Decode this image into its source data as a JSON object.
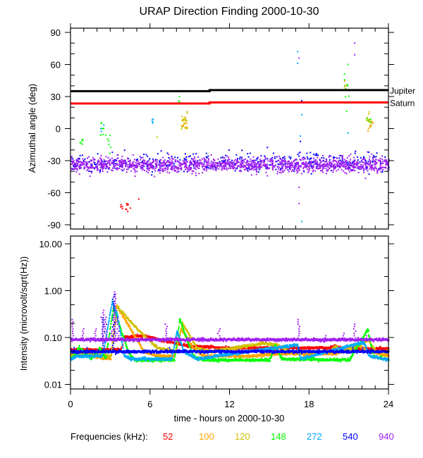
{
  "chart_data": [
    {
      "type": "scatter",
      "title": "URAP Direction Finding  2000-10-30",
      "ylabel": "Azimuthal angle (deg)",
      "xlim": [
        0,
        24
      ],
      "ylim": [
        -90,
        90
      ],
      "yticks": [
        "90",
        "60",
        "30",
        "0",
        "-30",
        "-60",
        "-90"
      ],
      "ytick_values": [
        90,
        60,
        30,
        0,
        -30,
        -60,
        -90
      ],
      "reference_lines": [
        {
          "name": "Jupiter",
          "color": "#000000",
          "points": [
            [
              0,
              35
            ],
            [
              10.5,
              35
            ],
            [
              10.5,
              36
            ],
            [
              24,
              36
            ]
          ]
        },
        {
          "name": "Saturn",
          "color": "#ff0000",
          "points": [
            [
              0,
              23.5
            ],
            [
              10.5,
              23.5
            ],
            [
              10.5,
              24.5
            ],
            [
              24,
              24.5
            ]
          ]
        }
      ],
      "clusters": [
        {
          "freq": "940",
          "t": [
            0,
            24
          ],
          "angle": -34,
          "sd": 3.5,
          "n": 1500
        },
        {
          "freq": "540",
          "t": [
            0,
            24
          ],
          "angle": -32,
          "sd": 4.5,
          "n": 450
        },
        {
          "freq": "148",
          "t": [
            0.6,
            0.9
          ],
          "angle": -12,
          "sd": 2,
          "n": 6
        },
        {
          "freq": "148",
          "t": [
            2.2,
            2.6
          ],
          "angle": 1,
          "sd": 4,
          "n": 8
        },
        {
          "freq": "148",
          "t": [
            2.7,
            3.1
          ],
          "angle": -14,
          "sd": 6,
          "n": 6
        },
        {
          "freq": "148",
          "t": [
            8.1,
            8.2
          ],
          "angle": 27,
          "sd": 3,
          "n": 3
        },
        {
          "freq": "148",
          "t": [
            20.6,
            21.0
          ],
          "angle": 40,
          "sd": 12,
          "n": 10
        },
        {
          "freq": "148",
          "t": [
            22.2,
            22.7
          ],
          "angle": 6,
          "sd": 5,
          "n": 8
        },
        {
          "freq": "52",
          "t": [
            3.6,
            4.5
          ],
          "angle": -73,
          "sd": 3,
          "n": 12
        },
        {
          "freq": "120",
          "t": [
            8.3,
            8.8
          ],
          "angle": 6,
          "sd": 4,
          "n": 25
        },
        {
          "freq": "120",
          "t": [
            22.3,
            22.7
          ],
          "angle": 8,
          "sd": 4,
          "n": 10
        },
        {
          "freq": "100",
          "t": [
            8.4,
            8.8
          ],
          "angle": 4,
          "sd": 3,
          "n": 6
        },
        {
          "freq": "100",
          "t": [
            22.4,
            22.8
          ],
          "angle": 3,
          "sd": 3,
          "n": 8
        },
        {
          "freq": "100",
          "t": [
            20.6,
            20.9
          ],
          "angle": 42,
          "sd": 4,
          "n": 4
        },
        {
          "freq": "272",
          "t": [
            6.1,
            6.3
          ],
          "angle": 6,
          "sd": 2,
          "n": 4
        },
        {
          "freq": "272",
          "t": [
            2.2,
            2.5
          ],
          "angle": 1,
          "sd": 2,
          "n": 3
        }
      ],
      "points": [
        {
          "freq": "272",
          "t": 17.1,
          "angle": 61
        },
        {
          "freq": "272",
          "t": 17.1,
          "angle": 72
        },
        {
          "freq": "272",
          "t": 17.4,
          "angle": -87
        },
        {
          "freq": "272",
          "t": 17.4,
          "angle": 13
        },
        {
          "freq": "272",
          "t": 17.3,
          "angle": -7
        },
        {
          "freq": "540",
          "t": 17.4,
          "angle": 26
        },
        {
          "freq": "540",
          "t": 17.3,
          "angle": -12
        },
        {
          "freq": "940",
          "t": 21.4,
          "angle": 80
        },
        {
          "freq": "940",
          "t": 21.4,
          "angle": 69
        },
        {
          "freq": "940",
          "t": 17.2,
          "angle": -55
        },
        {
          "freq": "940",
          "t": 17.2,
          "angle": -70
        },
        {
          "freq": "940",
          "t": 17.2,
          "angle": 66
        },
        {
          "freq": "120",
          "t": 6.5,
          "angle": -8
        },
        {
          "freq": "148",
          "t": 20.9,
          "angle": 60
        },
        {
          "freq": "272",
          "t": 20.9,
          "angle": -4
        },
        {
          "freq": "52",
          "t": 5.1,
          "angle": -66
        }
      ],
      "annotations": [
        "Jupiter",
        "Saturn"
      ]
    },
    {
      "type": "line",
      "ylabel": "Intensity (microvolt/sqrt(Hz))",
      "xlabel": "time - hours on 2000-10-30",
      "xlim": [
        0,
        24
      ],
      "ylim": [
        0.01,
        10
      ],
      "yscale": "log",
      "xticks": [
        "0",
        "6",
        "12",
        "18",
        "24"
      ],
      "xtick_values": [
        0,
        6,
        12,
        18,
        24
      ],
      "yticks": [
        "10.00",
        "1.00",
        "0.10",
        "0.01"
      ],
      "ytick_values": [
        10,
        1,
        0.1,
        0.01
      ],
      "legend_label": "Frequencies (kHz):",
      "legend_placement": "bottom",
      "series": [
        {
          "name": "52",
          "color": "#ff0000",
          "knots": [
            [
              0,
              0.055
            ],
            [
              3.8,
              0.055
            ],
            [
              4.0,
              0.1
            ],
            [
              5.5,
              0.11
            ],
            [
              7,
              0.085
            ],
            [
              9,
              0.065
            ],
            [
              12,
              0.06
            ],
            [
              19.5,
              0.06
            ],
            [
              20,
              0.065
            ],
            [
              20.5,
              0.058
            ],
            [
              24,
              0.058
            ]
          ],
          "spikes": []
        },
        {
          "name": "100",
          "color": "#ffa500",
          "knots": [
            [
              0,
              0.045
            ],
            [
              1,
              0.05
            ],
            [
              2,
              0.038
            ],
            [
              3.0,
              0.035
            ],
            [
              3.4,
              0.5
            ],
            [
              4.5,
              0.15
            ],
            [
              5.5,
              0.05
            ],
            [
              6.5,
              0.04
            ],
            [
              7.8,
              0.04
            ],
            [
              8.3,
              0.15
            ],
            [
              9.2,
              0.06
            ],
            [
              10,
              0.04
            ],
            [
              13.5,
              0.04
            ],
            [
              15.5,
              0.045
            ],
            [
              20,
              0.045
            ],
            [
              21.5,
              0.07
            ],
            [
              22.5,
              0.05
            ],
            [
              24,
              0.04
            ]
          ],
          "spikes": []
        },
        {
          "name": "120",
          "color": "#d0c000",
          "knots": [
            [
              0,
              0.045
            ],
            [
              3.0,
              0.04
            ],
            [
              3.5,
              0.45
            ],
            [
              5.0,
              0.15
            ],
            [
              6.5,
              0.06
            ],
            [
              7.9,
              0.05
            ],
            [
              8.4,
              0.2
            ],
            [
              9.5,
              0.06
            ],
            [
              10.5,
              0.05
            ],
            [
              14.5,
              0.075
            ],
            [
              15.5,
              0.07
            ],
            [
              16.5,
              0.05
            ],
            [
              19.5,
              0.05
            ],
            [
              19.9,
              0.065
            ],
            [
              20.5,
              0.05
            ],
            [
              21.5,
              0.06
            ],
            [
              22.4,
              0.09
            ],
            [
              23,
              0.05
            ],
            [
              24,
              0.05
            ]
          ],
          "spikes": []
        },
        {
          "name": "148",
          "color": "#00ff00",
          "knots": [
            [
              0,
              0.035
            ],
            [
              0.6,
              0.06
            ],
            [
              1.5,
              0.035
            ],
            [
              2.2,
              0.06
            ],
            [
              2.6,
              0.035
            ],
            [
              3.2,
              0.45
            ],
            [
              4.3,
              0.05
            ],
            [
              4.8,
              0.033
            ],
            [
              7.8,
              0.033
            ],
            [
              8.2,
              0.25
            ],
            [
              9.2,
              0.04
            ],
            [
              10,
              0.033
            ],
            [
              15,
              0.033
            ],
            [
              15.4,
              0.07
            ],
            [
              15.9,
              0.035
            ],
            [
              21,
              0.033
            ],
            [
              22.4,
              0.15
            ],
            [
              22.8,
              0.04
            ],
            [
              24,
              0.033
            ]
          ],
          "spikes": []
        },
        {
          "name": "272",
          "color": "#00aaff",
          "knots": [
            [
              0,
              0.035
            ],
            [
              0.5,
              0.04
            ],
            [
              2.3,
              0.04
            ],
            [
              2.5,
              0.06
            ],
            [
              3.1,
              0.6
            ],
            [
              3.5,
              0.3
            ],
            [
              4.0,
              0.04
            ],
            [
              4.5,
              0.035
            ],
            [
              7.6,
              0.035
            ],
            [
              8.0,
              0.14
            ],
            [
              8.5,
              0.05
            ],
            [
              9.5,
              0.035
            ],
            [
              17.1,
              0.07
            ],
            [
              17.3,
              0.035
            ],
            [
              22.1,
              0.08
            ],
            [
              22.5,
              0.04
            ],
            [
              24,
              0.033
            ]
          ],
          "spikes": []
        },
        {
          "name": "540",
          "color": "#0000ff",
          "knots": [
            [
              0,
              0.05
            ],
            [
              24,
              0.05
            ]
          ],
          "spikes": [
            [
              0.2,
              0.07
            ],
            [
              1.2,
              0.07
            ],
            [
              2.4,
              0.3
            ],
            [
              3.2,
              0.9
            ],
            [
              7.4,
              0.065
            ],
            [
              8.1,
              0.06
            ],
            [
              9.9,
              0.06
            ],
            [
              16.8,
              0.06
            ],
            [
              17.2,
              0.07
            ],
            [
              21.3,
              0.07
            ],
            [
              22.0,
              0.065
            ]
          ]
        },
        {
          "name": "940",
          "color": "#a020f0",
          "knots": [
            [
              0,
              0.09
            ],
            [
              24,
              0.09
            ]
          ],
          "spikes": [
            [
              0.1,
              0.25
            ],
            [
              0.9,
              0.17
            ],
            [
              1.8,
              0.16
            ],
            [
              2.4,
              0.42
            ],
            [
              2.6,
              0.3
            ],
            [
              3.0,
              0.15
            ],
            [
              3.3,
              1.0
            ],
            [
              3.5,
              0.3
            ],
            [
              7.2,
              0.2
            ],
            [
              11.2,
              0.17
            ],
            [
              14.8,
              0.11
            ],
            [
              17.2,
              0.25
            ],
            [
              19.1,
              0.12
            ],
            [
              20.6,
              0.14
            ],
            [
              21.4,
              0.2
            ],
            [
              22.3,
              0.12
            ]
          ]
        }
      ]
    }
  ]
}
